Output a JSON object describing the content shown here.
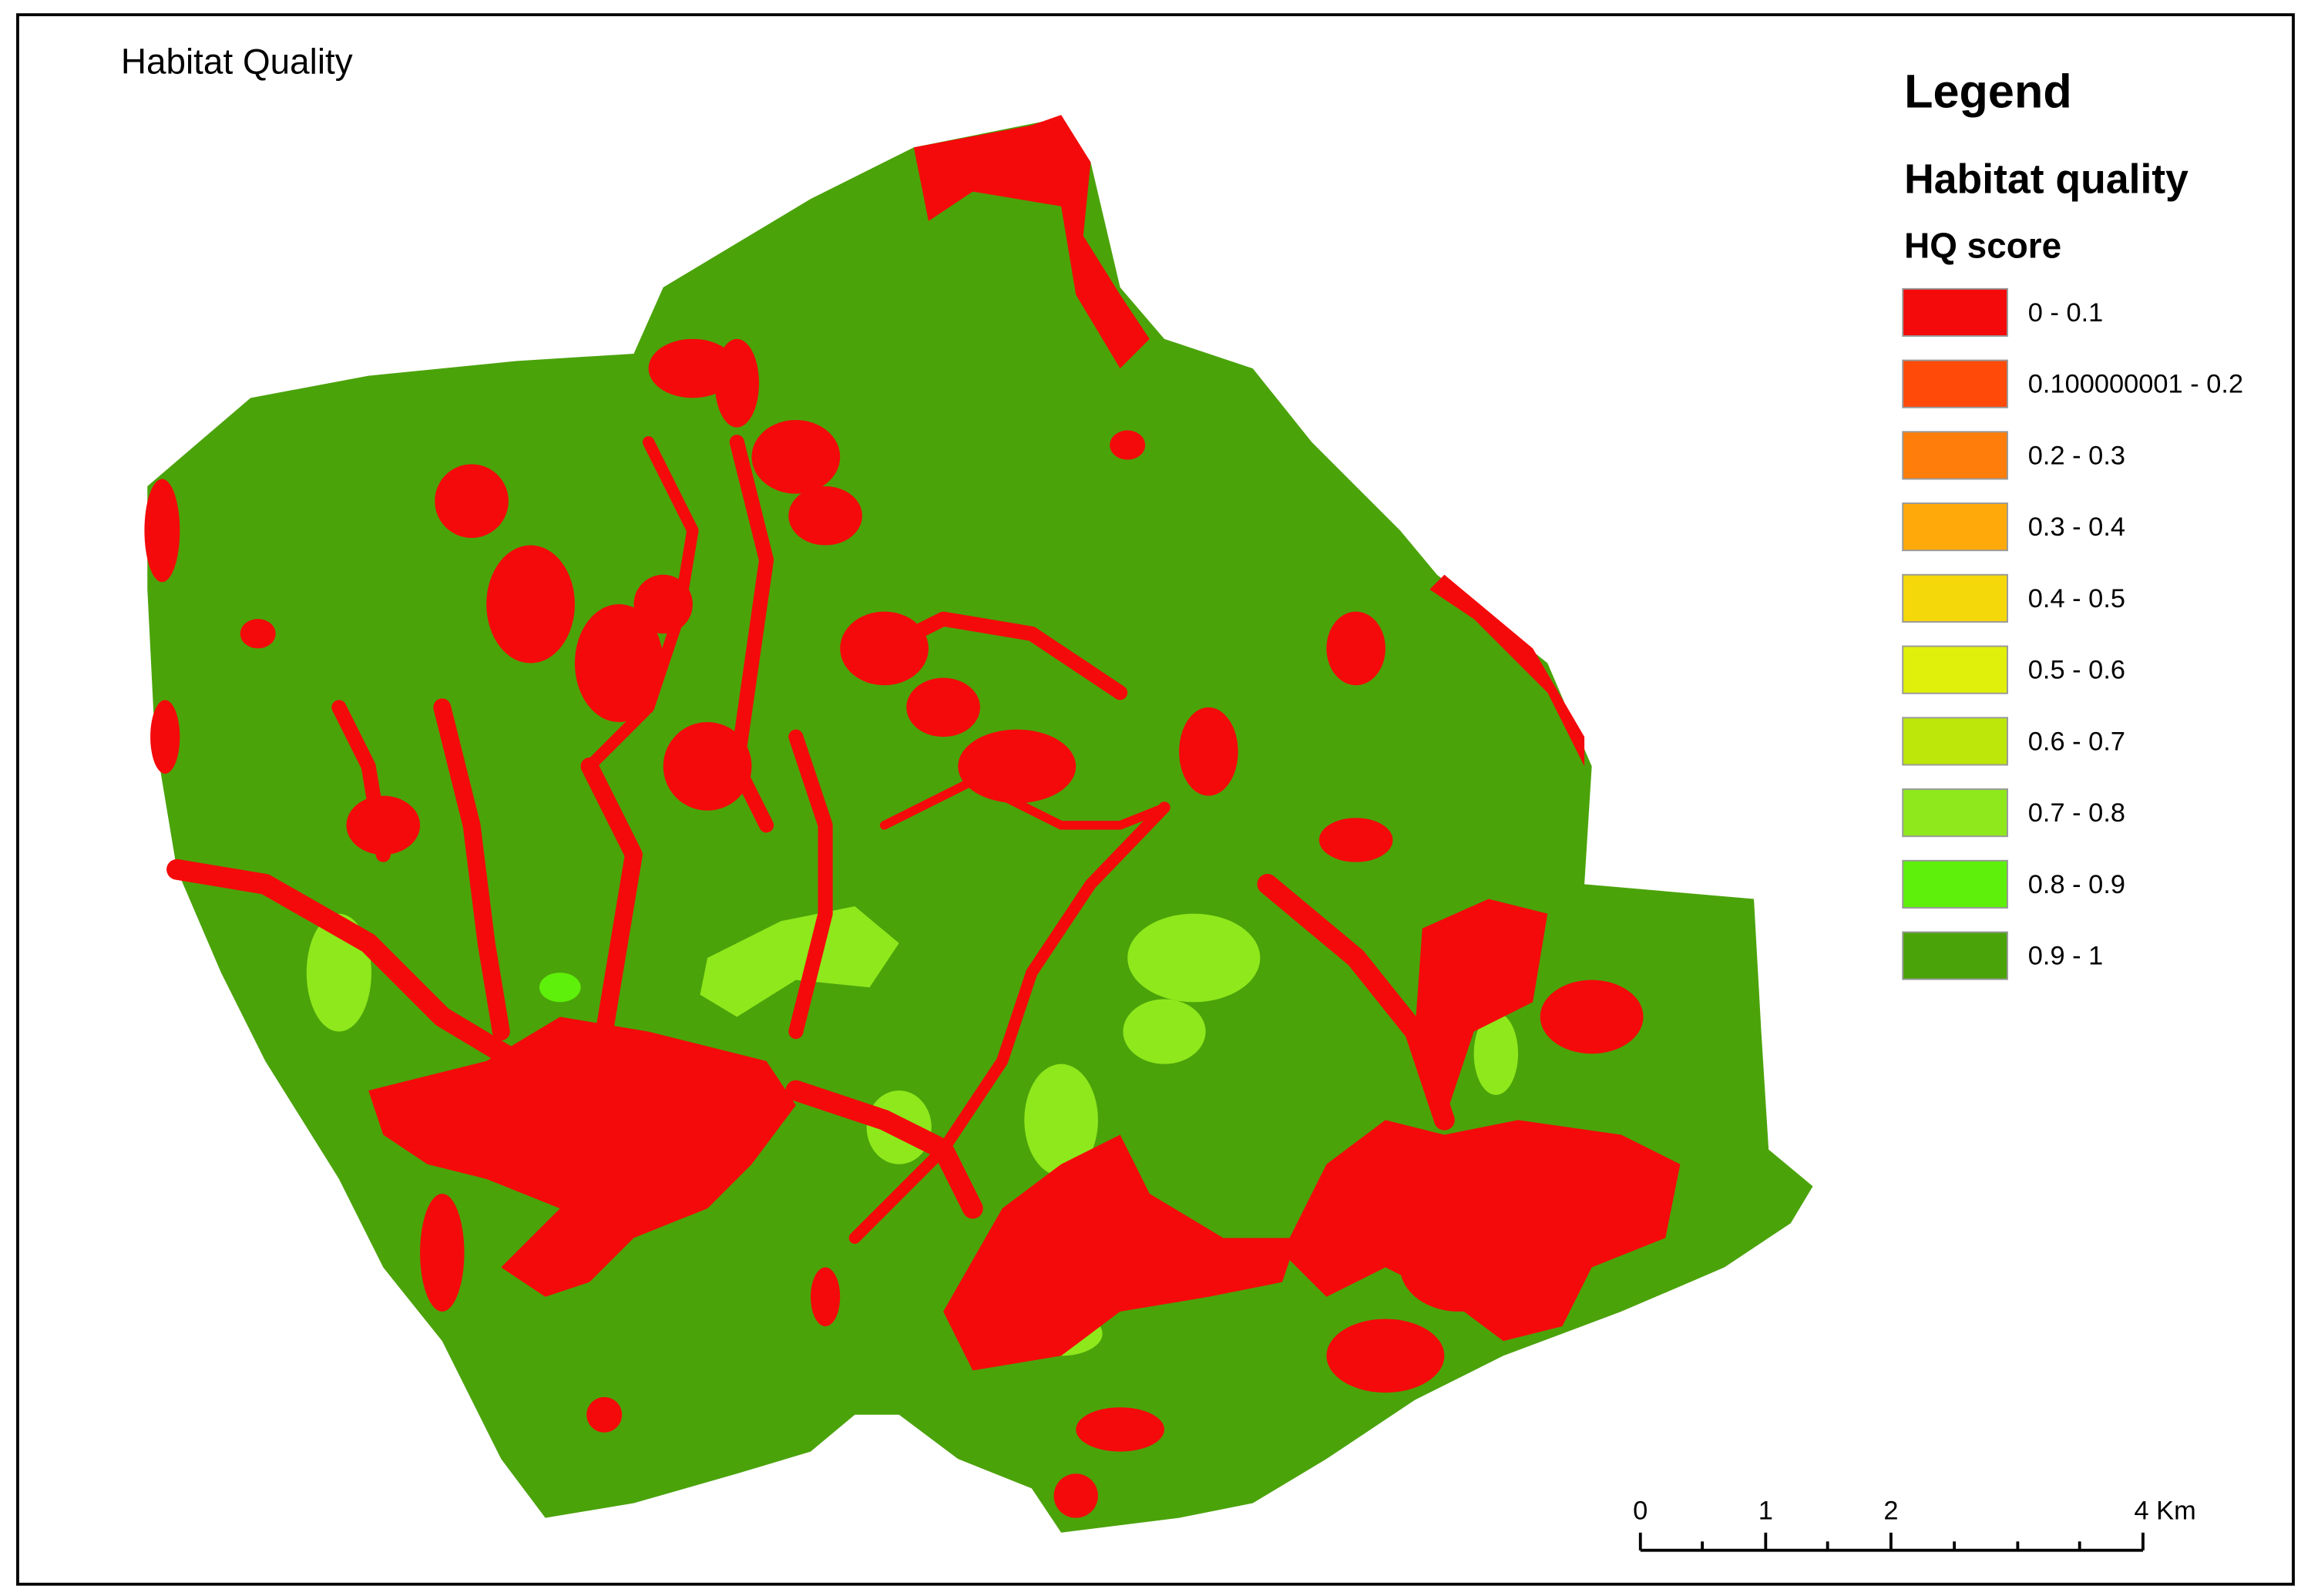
{
  "header": {
    "title": "Habitat Quality"
  },
  "legend": {
    "title": "Legend",
    "layer": "Habitat quality",
    "field": "HQ score",
    "classes": [
      {
        "label": "0 - 0.1",
        "color": "#f40a0a"
      },
      {
        "label": "0.100000001 - 0.2",
        "color": "#ff4a0a"
      },
      {
        "label": "0.2 - 0.3",
        "color": "#ff7d0a"
      },
      {
        "label": "0.3 - 0.4",
        "color": "#ffaa0a"
      },
      {
        "label": "0.4 - 0.5",
        "color": "#f5d80a"
      },
      {
        "label": "0.5 - 0.6",
        "color": "#e1f00a"
      },
      {
        "label": "0.6 - 0.7",
        "color": "#bde60a"
      },
      {
        "label": "0.7 - 0.8",
        "color": "#8ee81c"
      },
      {
        "label": "0.8 - 0.9",
        "color": "#5ef00a"
      },
      {
        "label": "0.9 - 1",
        "color": "#4ba30a"
      }
    ]
  },
  "scale_bar": {
    "labels": [
      "0",
      "1",
      "2",
      "4 Km"
    ]
  }
}
